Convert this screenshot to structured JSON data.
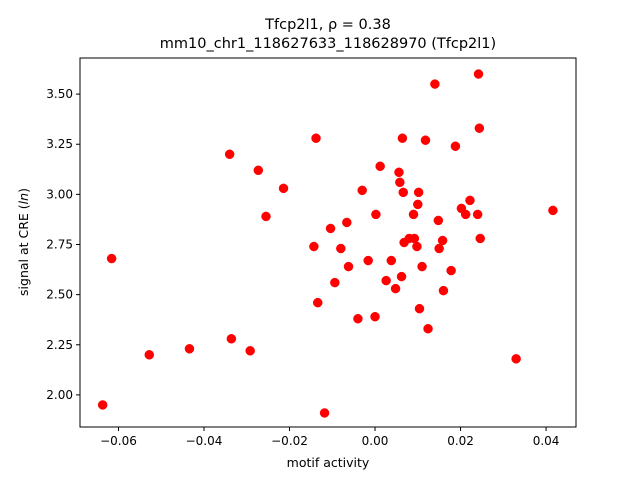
{
  "chart_data": {
    "type": "scatter",
    "title_line1": "Tfcp2l1, ρ = 0.38",
    "title_line2": "mm10_chr1_118627633_118628970 (Tfcp2l1)",
    "xlabel": "motif activity",
    "ylabel": "signal at CRE (ln)",
    "xlim": [
      -0.069,
      0.047
    ],
    "ylim": [
      1.84,
      3.68
    ],
    "xticks": [
      -0.06,
      -0.04,
      -0.02,
      0.0,
      0.02,
      0.04
    ],
    "xtick_labels": [
      "−0.06",
      "−0.04",
      "−0.02",
      "0.00",
      "0.02",
      "0.04"
    ],
    "yticks": [
      2.0,
      2.25,
      2.5,
      2.75,
      3.0,
      3.25,
      3.5
    ],
    "ytick_labels": [
      "2.00",
      "2.25",
      "2.50",
      "2.75",
      "3.00",
      "3.25",
      "3.50"
    ],
    "grid": false,
    "point_color": "#ff0000",
    "points": [
      {
        "x": -0.0637,
        "y": 1.95
      },
      {
        "x": -0.0616,
        "y": 2.68
      },
      {
        "x": -0.0528,
        "y": 2.2
      },
      {
        "x": -0.0434,
        "y": 2.23
      },
      {
        "x": -0.034,
        "y": 3.2
      },
      {
        "x": -0.0336,
        "y": 2.28
      },
      {
        "x": -0.0292,
        "y": 2.22
      },
      {
        "x": -0.0273,
        "y": 3.12
      },
      {
        "x": -0.0255,
        "y": 2.89
      },
      {
        "x": -0.0214,
        "y": 3.03
      },
      {
        "x": -0.0143,
        "y": 2.74
      },
      {
        "x": -0.0138,
        "y": 3.28
      },
      {
        "x": -0.0134,
        "y": 2.46
      },
      {
        "x": -0.0118,
        "y": 1.91
      },
      {
        "x": -0.0104,
        "y": 2.83
      },
      {
        "x": -0.0094,
        "y": 2.56
      },
      {
        "x": -0.008,
        "y": 2.73
      },
      {
        "x": -0.0066,
        "y": 2.86
      },
      {
        "x": -0.0062,
        "y": 2.64
      },
      {
        "x": -0.004,
        "y": 2.38
      },
      {
        "x": -0.003,
        "y": 3.02
      },
      {
        "x": -0.0016,
        "y": 2.67
      },
      {
        "x": 0.0,
        "y": 2.39
      },
      {
        "x": 0.0002,
        "y": 2.9
      },
      {
        "x": 0.0012,
        "y": 3.14
      },
      {
        "x": 0.0026,
        "y": 2.57
      },
      {
        "x": 0.0038,
        "y": 2.67
      },
      {
        "x": 0.0048,
        "y": 2.53
      },
      {
        "x": 0.0056,
        "y": 3.11
      },
      {
        "x": 0.0058,
        "y": 3.06
      },
      {
        "x": 0.0062,
        "y": 2.59
      },
      {
        "x": 0.0064,
        "y": 3.28
      },
      {
        "x": 0.0066,
        "y": 3.01
      },
      {
        "x": 0.0068,
        "y": 2.76
      },
      {
        "x": 0.008,
        "y": 2.78
      },
      {
        "x": 0.009,
        "y": 2.9
      },
      {
        "x": 0.0092,
        "y": 2.78
      },
      {
        "x": 0.0098,
        "y": 2.74
      },
      {
        "x": 0.01,
        "y": 2.95
      },
      {
        "x": 0.0102,
        "y": 3.01
      },
      {
        "x": 0.0104,
        "y": 2.43
      },
      {
        "x": 0.011,
        "y": 2.64
      },
      {
        "x": 0.0118,
        "y": 3.27
      },
      {
        "x": 0.0124,
        "y": 2.33
      },
      {
        "x": 0.014,
        "y": 3.55
      },
      {
        "x": 0.0148,
        "y": 2.87
      },
      {
        "x": 0.015,
        "y": 2.73
      },
      {
        "x": 0.0158,
        "y": 2.77
      },
      {
        "x": 0.016,
        "y": 2.52
      },
      {
        "x": 0.0178,
        "y": 2.62
      },
      {
        "x": 0.0188,
        "y": 3.24
      },
      {
        "x": 0.0202,
        "y": 2.93
      },
      {
        "x": 0.0212,
        "y": 2.9
      },
      {
        "x": 0.0222,
        "y": 2.97
      },
      {
        "x": 0.024,
        "y": 2.9
      },
      {
        "x": 0.0242,
        "y": 3.6
      },
      {
        "x": 0.0244,
        "y": 3.33
      },
      {
        "x": 0.0246,
        "y": 2.78
      },
      {
        "x": 0.033,
        "y": 2.18
      },
      {
        "x": 0.0416,
        "y": 2.92
      }
    ]
  }
}
